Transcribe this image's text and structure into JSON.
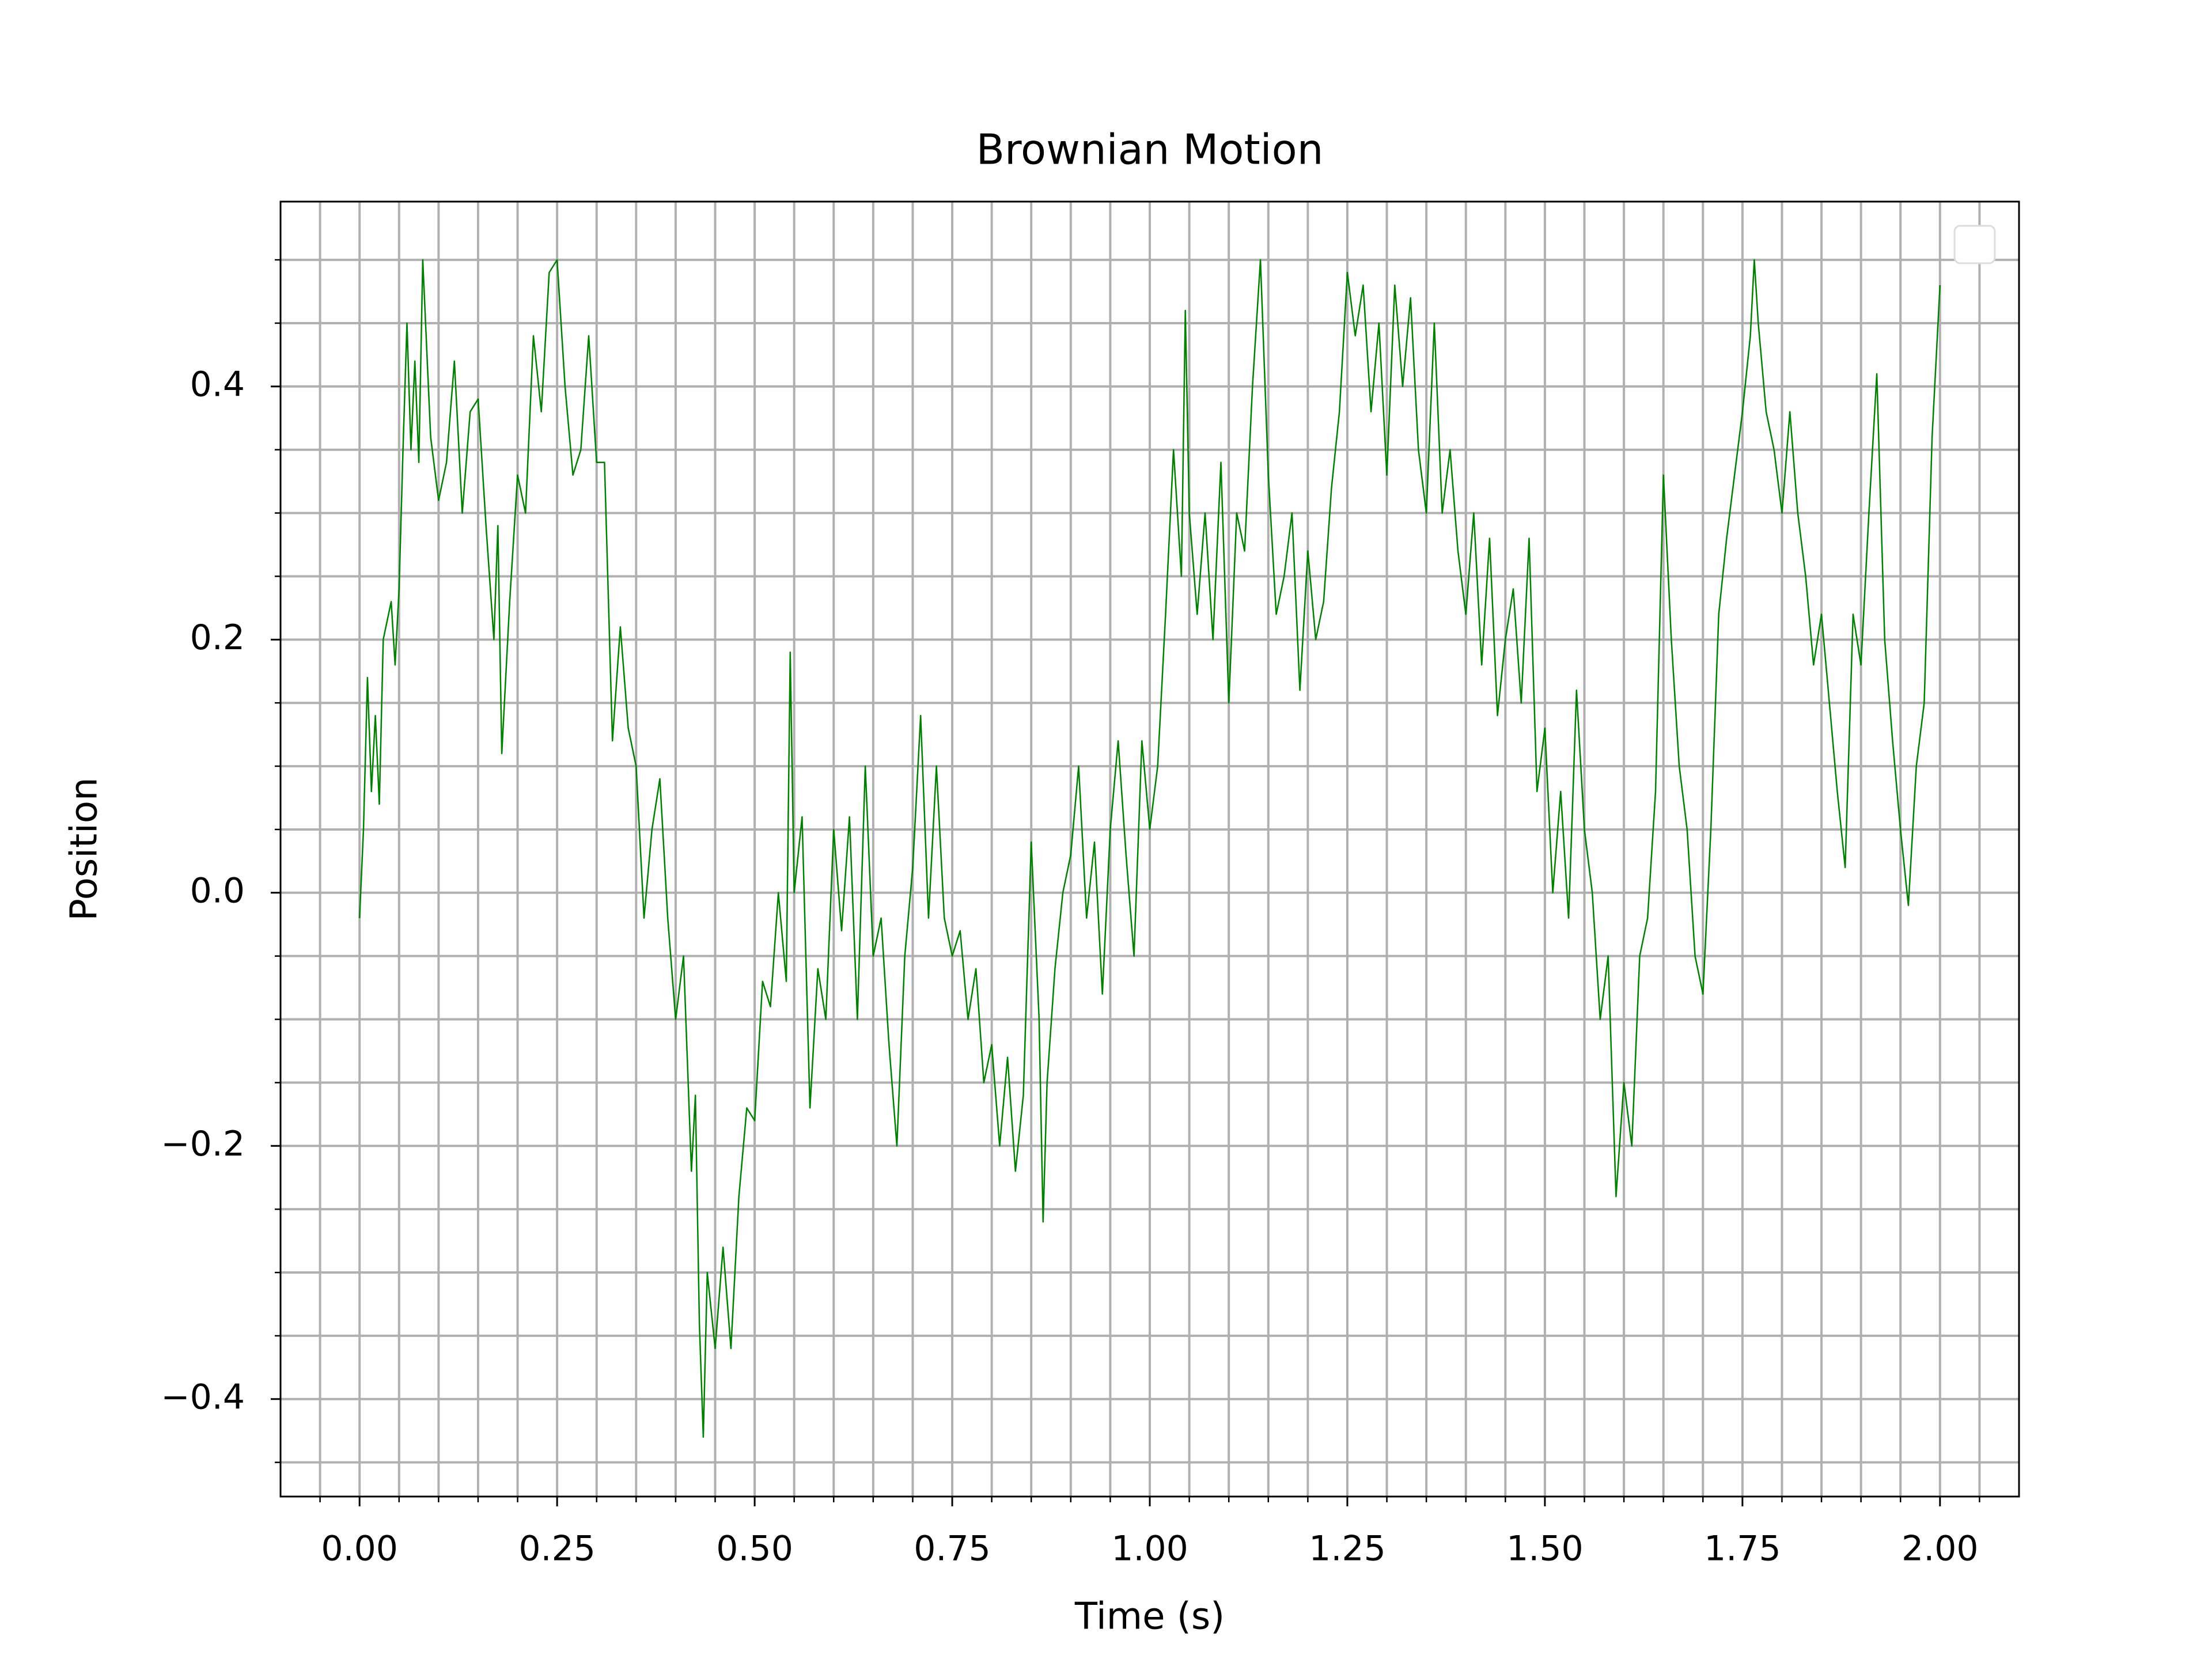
{
  "chart_data": {
    "type": "line",
    "title": "Brownian Motion",
    "x_label": "Time (s)",
    "y_label": "Position",
    "color": "#008000",
    "grid": true,
    "xlim": [
      -0.1,
      2.1
    ],
    "ylim": [
      -0.477,
      0.546
    ],
    "xticks": [
      {
        "value": 0,
        "label": "0.00"
      },
      {
        "value": 0.25,
        "label": "0.25"
      },
      {
        "value": 0.5,
        "label": "0.50"
      },
      {
        "value": 0.75,
        "label": "0.75"
      },
      {
        "value": 1,
        "label": "1.00"
      },
      {
        "value": 1.25,
        "label": "1.25"
      },
      {
        "value": 1.5,
        "label": "1.50"
      },
      {
        "value": 1.75,
        "label": "1.75"
      },
      {
        "value": 2,
        "label": "2.00"
      }
    ],
    "yticks": [
      {
        "value": -0.4,
        "label": "−0.4"
      },
      {
        "value": -0.2,
        "label": "−0.2"
      },
      {
        "value": 0,
        "label": "0.0"
      },
      0.2,
      0.4
    ],
    "xminorticks": [
      -0.05,
      0.05,
      0.1,
      0.15,
      0.2,
      0.3,
      0.35,
      0.4,
      0.45,
      0.55,
      0.6,
      0.65,
      0.7,
      0.8,
      0.85,
      0.9,
      0.95,
      1.05,
      1.1,
      1.15,
      1.2,
      1.3,
      1.35,
      1.4,
      1.45,
      1.55,
      1.6,
      1.65,
      1.7,
      1.8,
      1.85,
      1.9,
      1.95,
      2.05
    ],
    "yminorticks": [
      -0.45,
      -0.35,
      -0.3,
      -0.25,
      -0.15,
      -0.1,
      -0.05,
      0.05,
      0.1,
      0.15,
      0.25,
      0.3,
      0.35,
      0.45,
      0.5
    ],
    "x": [
      0,
      0.005,
      0.01,
      0.015,
      0.02,
      0.025,
      0.03,
      0.04,
      0.045,
      0.05,
      0.055,
      0.06,
      0.065,
      0.07,
      0.075,
      0.08,
      0.09,
      0.1,
      0.11,
      0.12,
      0.13,
      0.14,
      0.15,
      0.16,
      0.17,
      0.175,
      0.18,
      0.19,
      0.2,
      0.21,
      0.22,
      0.23,
      0.24,
      0.25,
      0.26,
      0.27,
      0.28,
      0.29,
      0.3,
      0.31,
      0.32,
      0.33,
      0.34,
      0.35,
      0.36,
      0.37,
      0.38,
      0.39,
      0.4,
      0.41,
      0.42,
      0.425,
      0.43,
      0.435,
      0.44,
      0.45,
      0.46,
      0.47,
      0.48,
      0.49,
      0.5,
      0.51,
      0.52,
      0.53,
      0.54,
      0.545,
      0.55,
      0.56,
      0.57,
      0.58,
      0.59,
      0.6,
      0.61,
      0.62,
      0.63,
      0.64,
      0.65,
      0.66,
      0.67,
      0.68,
      0.69,
      0.7,
      0.71,
      0.72,
      0.73,
      0.74,
      0.75,
      0.76,
      0.77,
      0.78,
      0.79,
      0.8,
      0.81,
      0.82,
      0.83,
      0.84,
      0.85,
      0.86,
      0.865,
      0.87,
      0.88,
      0.89,
      0.9,
      0.91,
      0.92,
      0.93,
      0.94,
      0.95,
      0.96,
      0.97,
      0.98,
      0.99,
      1,
      1.01,
      1.02,
      1.03,
      1.04,
      1.045,
      1.05,
      1.06,
      1.07,
      1.08,
      1.09,
      1.1,
      1.11,
      1.12,
      1.13,
      1.14,
      1.15,
      1.16,
      1.17,
      1.18,
      1.19,
      1.2,
      1.21,
      1.22,
      1.23,
      1.24,
      1.25,
      1.26,
      1.27,
      1.28,
      1.29,
      1.3,
      1.31,
      1.32,
      1.33,
      1.34,
      1.35,
      1.36,
      1.37,
      1.38,
      1.39,
      1.4,
      1.41,
      1.42,
      1.43,
      1.44,
      1.45,
      1.46,
      1.47,
      1.48,
      1.49,
      1.5,
      1.51,
      1.52,
      1.53,
      1.54,
      1.55,
      1.56,
      1.57,
      1.58,
      1.59,
      1.6,
      1.61,
      1.62,
      1.63,
      1.64,
      1.65,
      1.66,
      1.67,
      1.68,
      1.69,
      1.7,
      1.71,
      1.72,
      1.73,
      1.74,
      1.75,
      1.76,
      1.765,
      1.77,
      1.78,
      1.79,
      1.8,
      1.81,
      1.82,
      1.83,
      1.84,
      1.85,
      1.86,
      1.87,
      1.88,
      1.89,
      1.9,
      1.91,
      1.92,
      1.93,
      1.94,
      1.95,
      1.96,
      1.97,
      1.98,
      1.99,
      2
    ],
    "values": [
      -0.02,
      0.05,
      0.17,
      0.08,
      0.14,
      0.07,
      0.2,
      0.23,
      0.18,
      0.24,
      0.35,
      0.45,
      0.35,
      0.42,
      0.34,
      0.5,
      0.36,
      0.31,
      0.34,
      0.42,
      0.3,
      0.38,
      0.39,
      0.29,
      0.2,
      0.29,
      0.11,
      0.23,
      0.33,
      0.3,
      0.44,
      0.38,
      0.49,
      0.5,
      0.4,
      0.33,
      0.35,
      0.44,
      0.34,
      0.34,
      0.12,
      0.21,
      0.13,
      0.1,
      -0.02,
      0.05,
      0.09,
      -0.02,
      -0.1,
      -0.05,
      -0.22,
      -0.16,
      -0.34,
      -0.43,
      -0.3,
      -0.36,
      -0.28,
      -0.36,
      -0.24,
      -0.17,
      -0.18,
      -0.07,
      -0.09,
      0,
      -0.07,
      0.19,
      0,
      0.06,
      -0.17,
      -0.06,
      -0.1,
      0.05,
      -0.03,
      0.06,
      -0.1,
      0.1,
      -0.05,
      -0.02,
      -0.12,
      -0.2,
      -0.05,
      0.02,
      0.14,
      -0.02,
      0.1,
      -0.02,
      -0.05,
      -0.03,
      -0.1,
      -0.06,
      -0.15,
      -0.12,
      -0.2,
      -0.13,
      -0.22,
      -0.16,
      0.04,
      -0.1,
      -0.26,
      -0.15,
      -0.06,
      0,
      0.03,
      0.1,
      -0.02,
      0.04,
      -0.08,
      0.05,
      0.12,
      0.03,
      -0.05,
      0.12,
      0.05,
      0.1,
      0.22,
      0.35,
      0.25,
      0.46,
      0.3,
      0.22,
      0.3,
      0.2,
      0.34,
      0.15,
      0.3,
      0.27,
      0.4,
      0.5,
      0.33,
      0.22,
      0.25,
      0.3,
      0.16,
      0.27,
      0.2,
      0.23,
      0.32,
      0.38,
      0.49,
      0.44,
      0.48,
      0.38,
      0.45,
      0.33,
      0.48,
      0.4,
      0.47,
      0.35,
      0.3,
      0.45,
      0.3,
      0.35,
      0.27,
      0.22,
      0.3,
      0.18,
      0.28,
      0.14,
      0.2,
      0.24,
      0.15,
      0.28,
      0.08,
      0.13,
      0,
      0.08,
      -0.02,
      0.16,
      0.05,
      0,
      -0.1,
      -0.05,
      -0.24,
      -0.15,
      -0.2,
      -0.05,
      -0.02,
      0.08,
      0.33,
      0.2,
      0.1,
      0.05,
      -0.05,
      -0.08,
      0.05,
      0.22,
      0.28,
      0.33,
      0.38,
      0.44,
      0.5,
      0.45,
      0.38,
      0.35,
      0.3,
      0.38,
      0.3,
      0.25,
      0.18,
      0.22,
      0.15,
      0.08,
      0.02,
      0.22,
      0.18,
      0.3,
      0.41,
      0.2,
      0.12,
      0.05,
      -0.01,
      0.1,
      0.15,
      0.36,
      0.48
    ]
  }
}
